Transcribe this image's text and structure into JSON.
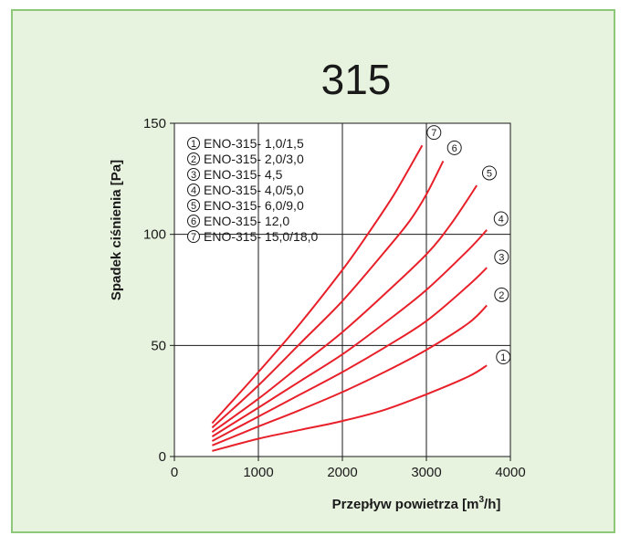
{
  "chart_data": {
    "type": "line",
    "title": "315",
    "xlabel": "Przepływ  powietrza [m",
    "xlabel_sup": "3",
    "xlabel_end": "/h]",
    "ylabel": "Spadek  ciśnienia [Pa]",
    "xlim": [
      0,
      4000
    ],
    "ylim": [
      0,
      150
    ],
    "x_ticks": [
      0,
      1000,
      2000,
      3000,
      4000
    ],
    "x_tick_labels": [
      "0",
      "1000",
      "2000",
      "3000",
      "4000"
    ],
    "y_ticks": [
      0,
      50,
      100,
      150
    ],
    "y_tick_labels": [
      "0",
      "50",
      "100",
      "150"
    ],
    "grid": true,
    "legend_position": "top-left",
    "line_color": "#e8202a",
    "series": [
      {
        "marker": "1",
        "name": "ENO-315- 1,0/1,5",
        "x": [
          450,
          1000,
          1500,
          2000,
          2500,
          3000,
          3500,
          3720
        ],
        "y": [
          2.5,
          8,
          12,
          16,
          21,
          28,
          36,
          41
        ]
      },
      {
        "marker": "2",
        "name": "ENO-315- 2,0/3,0",
        "x": [
          450,
          1000,
          1500,
          2000,
          2500,
          3000,
          3500,
          3720
        ],
        "y": [
          5,
          13.5,
          21,
          29,
          38,
          48,
          60,
          68
        ]
      },
      {
        "marker": "3",
        "name": "ENO-315- 4,5",
        "x": [
          450,
          1000,
          1500,
          2000,
          2500,
          3000,
          3500,
          3720
        ],
        "y": [
          7,
          18,
          28,
          38,
          49,
          61,
          77,
          85
        ]
      },
      {
        "marker": "4",
        "name": "ENO-315- 4,0/5,0",
        "x": [
          450,
          1000,
          1500,
          2000,
          2500,
          3000,
          3500,
          3720
        ],
        "y": [
          9,
          22,
          34,
          46,
          60,
          75,
          93,
          102
        ]
      },
      {
        "marker": "5",
        "name": "ENO-315- 6,0/9,0",
        "x": [
          450,
          1000,
          1500,
          2000,
          2500,
          3000,
          3300,
          3600
        ],
        "y": [
          11,
          26,
          41,
          56,
          73,
          91,
          105,
          122
        ]
      },
      {
        "marker": "6",
        "name": "ENO-315- 12,0",
        "x": [
          450,
          1000,
          1500,
          2000,
          2500,
          2800,
          3000,
          3200
        ],
        "y": [
          13,
          32,
          51,
          70,
          92,
          106,
          118,
          133
        ]
      },
      {
        "marker": "7",
        "name": "ENO-315- 15,0/18,0",
        "x": [
          450,
          1000,
          1500,
          2000,
          2300,
          2600,
          2800,
          2950
        ],
        "y": [
          15,
          38,
          60,
          84,
          100,
          117,
          130,
          140
        ]
      }
    ]
  }
}
